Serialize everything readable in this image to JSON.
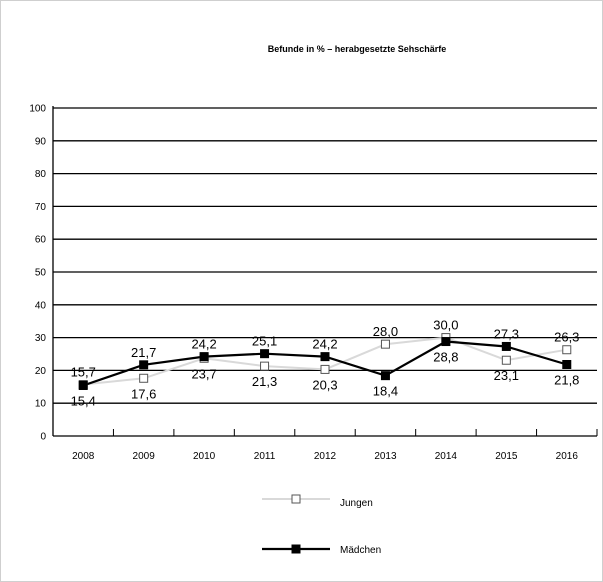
{
  "chart_data": {
    "type": "line",
    "title": "Befunde in % – herabgesetzte Sehschärfe",
    "xlabel": "",
    "ylabel": "",
    "categories": [
      "2008",
      "2009",
      "2010",
      "2011",
      "2012",
      "2013",
      "2014",
      "2015",
      "2016"
    ],
    "ylim": [
      0,
      100
    ],
    "yticks": [
      "0",
      "10",
      "20",
      "30",
      "40",
      "50",
      "60",
      "70",
      "80",
      "90",
      "100"
    ],
    "grid": "horizontal",
    "legend_position": "bottom",
    "series": [
      {
        "name": "Jungen",
        "color": "#d9d9d9",
        "marker": "open-square",
        "values": [
          15.7,
          17.6,
          23.7,
          21.3,
          20.3,
          28.0,
          30.0,
          23.1,
          26.3
        ],
        "labels": [
          "15,7",
          "17,6",
          "23,7",
          "21,3",
          "20,3",
          "28,0",
          "30,0",
          "23,1",
          "26,3"
        ]
      },
      {
        "name": "Mädchen",
        "color": "#000000",
        "marker": "filled-square",
        "values": [
          15.4,
          21.7,
          24.2,
          25.1,
          24.2,
          18.4,
          28.8,
          27.3,
          21.8
        ],
        "labels": [
          "15,4",
          "21,7",
          "24,2",
          "25,1",
          "24,2",
          "18,4",
          "28,8",
          "27,3",
          "21,8"
        ]
      }
    ]
  }
}
